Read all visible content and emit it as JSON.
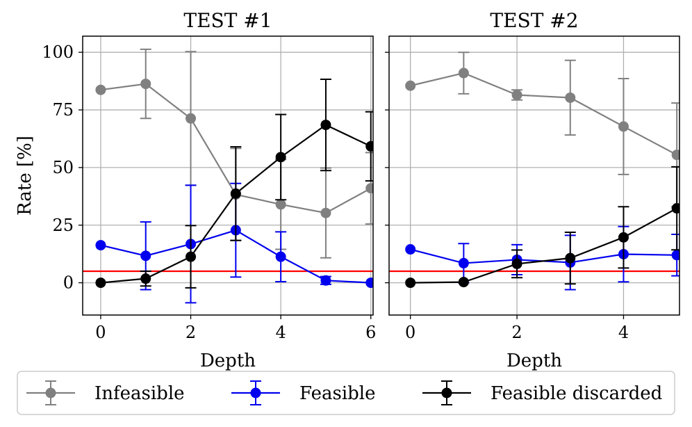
{
  "chart_data": [
    {
      "type": "line",
      "title": "TEST #1",
      "xlabel": "Depth",
      "ylabel": "Rate [%]",
      "xlim": [
        -0.4,
        6.05
      ],
      "ylim": [
        -14,
        107
      ],
      "xticks": [
        0,
        2,
        4,
        6
      ],
      "yticks": [
        0,
        25,
        50,
        75,
        100
      ],
      "grid": true,
      "threshold": 5,
      "series": [
        {
          "name": "Infeasible",
          "color": "#808080",
          "x": [
            0,
            1,
            2,
            3,
            4,
            5,
            6
          ],
          "y": [
            83.7,
            86.3,
            71.3,
            38.3,
            34,
            30.3,
            41
          ],
          "err": [
            0,
            15,
            29,
            20,
            19.5,
            19.5,
            15.5
          ]
        },
        {
          "name": "Feasible",
          "color": "#0000ee",
          "x": [
            0,
            1,
            2,
            3,
            4,
            5,
            6
          ],
          "y": [
            16.3,
            11.7,
            16.8,
            22.8,
            11.3,
            1,
            0
          ],
          "err": [
            0,
            14.7,
            25.5,
            20.3,
            10.8,
            1.7,
            0
          ]
        },
        {
          "name": "Feasible discarded",
          "color": "#000000",
          "x": [
            0,
            1,
            2,
            3,
            4,
            5,
            6
          ],
          "y": [
            0,
            1.8,
            11.3,
            38.7,
            54.5,
            68.5,
            59.2
          ],
          "err": [
            0,
            3.2,
            13.5,
            20.3,
            18.5,
            19.8,
            15
          ]
        }
      ]
    },
    {
      "type": "line",
      "title": "TEST #2",
      "xlabel": "Depth",
      "ylabel": "",
      "xlim": [
        -0.4,
        5.05
      ],
      "ylim": [
        -14,
        107
      ],
      "xticks": [
        0,
        2,
        4
      ],
      "yticks": [
        0,
        25,
        50,
        75,
        100
      ],
      "grid": true,
      "threshold": 5,
      "series": [
        {
          "name": "Infeasible",
          "color": "#808080",
          "x": [
            0,
            1,
            2,
            3,
            4,
            5
          ],
          "y": [
            85.5,
            91,
            81.5,
            80.3,
            67.8,
            55.5
          ],
          "err": [
            0,
            9,
            2.2,
            16.2,
            20.8,
            22.5
          ]
        },
        {
          "name": "Feasible",
          "color": "#0000ee",
          "x": [
            0,
            1,
            2,
            3,
            4,
            5
          ],
          "y": [
            14.5,
            8.5,
            10,
            8.8,
            12.4,
            12
          ],
          "err": [
            0,
            8.5,
            6.5,
            11.8,
            12,
            9
          ]
        },
        {
          "name": "Feasible discarded",
          "color": "#000000",
          "x": [
            0,
            1,
            2,
            3,
            4,
            5
          ],
          "y": [
            0,
            0.3,
            8.2,
            10.7,
            19.7,
            32.3
          ],
          "err": [
            0,
            0,
            6,
            11.2,
            13.3,
            18
          ]
        }
      ]
    }
  ],
  "legend": {
    "position": "bottom",
    "items": [
      {
        "label": "Infeasible",
        "color": "#808080"
      },
      {
        "label": "Feasible",
        "color": "#0000ee"
      },
      {
        "label": "Feasible discarded",
        "color": "#000000"
      }
    ]
  },
  "colors": {
    "grid": "#b0b0b0",
    "threshold": "#ff0000",
    "frame": "#000000"
  }
}
